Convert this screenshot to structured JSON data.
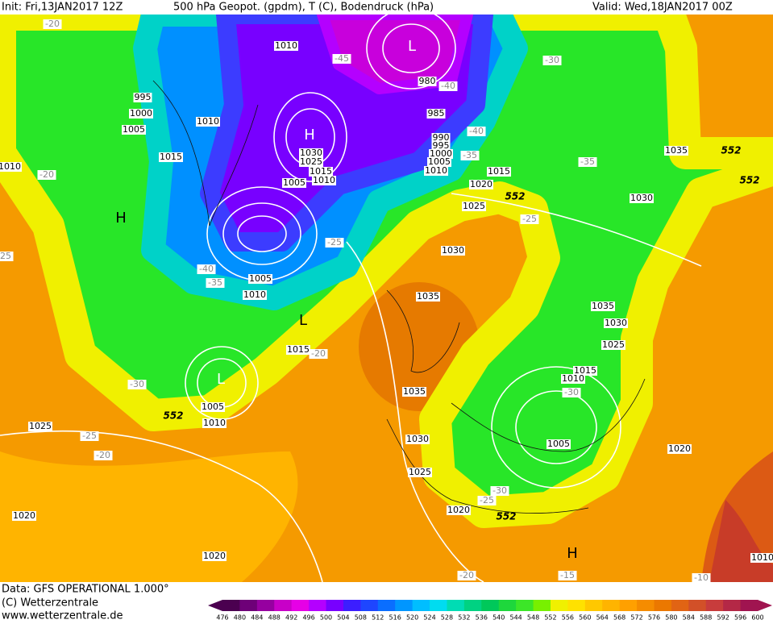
{
  "header": {
    "init": "Init: Fri,13JAN2017 12Z",
    "title": "500 hPa Geopot. (gpdm), T (C), Bodendruck (hPa)",
    "valid": "Valid: Wed,18JAN2017 00Z"
  },
  "footer": {
    "data": "Data: GFS OPERATIONAL 1.000°",
    "copyright": "(C) Wetterzentrale",
    "url": "www.wetterzentrale.de"
  },
  "legend": {
    "levels": [
      476,
      480,
      484,
      488,
      492,
      496,
      500,
      504,
      508,
      512,
      516,
      520,
      524,
      528,
      532,
      536,
      540,
      544,
      548,
      552,
      556,
      560,
      564,
      568,
      572,
      576,
      580,
      584,
      588,
      592,
      596,
      600
    ],
    "colors": [
      "#4b0050",
      "#6e0078",
      "#9600a0",
      "#c800c8",
      "#e600e6",
      "#b400ff",
      "#7800ff",
      "#3c1eff",
      "#1e46ff",
      "#0a6eff",
      "#0096ff",
      "#00beff",
      "#00dcf0",
      "#00dcb4",
      "#00d282",
      "#00c85a",
      "#1ed73c",
      "#3ce628",
      "#78f000",
      "#f0f000",
      "#ffe100",
      "#ffc800",
      "#ffb400",
      "#ffa000",
      "#f58c00",
      "#eb7800",
      "#e16414",
      "#d25028",
      "#c83c3c",
      "#b42846",
      "#a01450"
    ]
  },
  "map": {
    "pressure_labels": [
      "1010",
      "995",
      "1000",
      "1005",
      "1010",
      "1015",
      "1010",
      "1030",
      "1025",
      "1015",
      "1010",
      "1005",
      "980",
      "985",
      "990",
      "995",
      "1000",
      "1005",
      "1010",
      "1015",
      "1020",
      "1025",
      "1030",
      "1035",
      "1030",
      "1035",
      "1005",
      "1010",
      "1015",
      "1035",
      "1035",
      "1030",
      "1025",
      "1015",
      "1010",
      "1005",
      "1030",
      "1025",
      "1020",
      "1020",
      "1005",
      "1010",
      "1025",
      "1020",
      "1020",
      "1010"
    ],
    "temperature_labels": [
      "-20",
      "-45",
      "-40",
      "-30",
      "-40",
      "-35",
      "-35",
      "-20",
      "-25",
      "-25",
      "-40",
      "-35",
      "-20",
      "-30",
      "-25",
      "-20",
      "-30",
      "-30",
      "-25",
      "-20",
      "-15",
      "-10",
      "-25"
    ],
    "geopotential_labels": [
      "552",
      "552",
      "552",
      "552",
      "552"
    ],
    "centers": [
      "H",
      "L",
      "H",
      "L",
      "L",
      "H"
    ]
  }
}
